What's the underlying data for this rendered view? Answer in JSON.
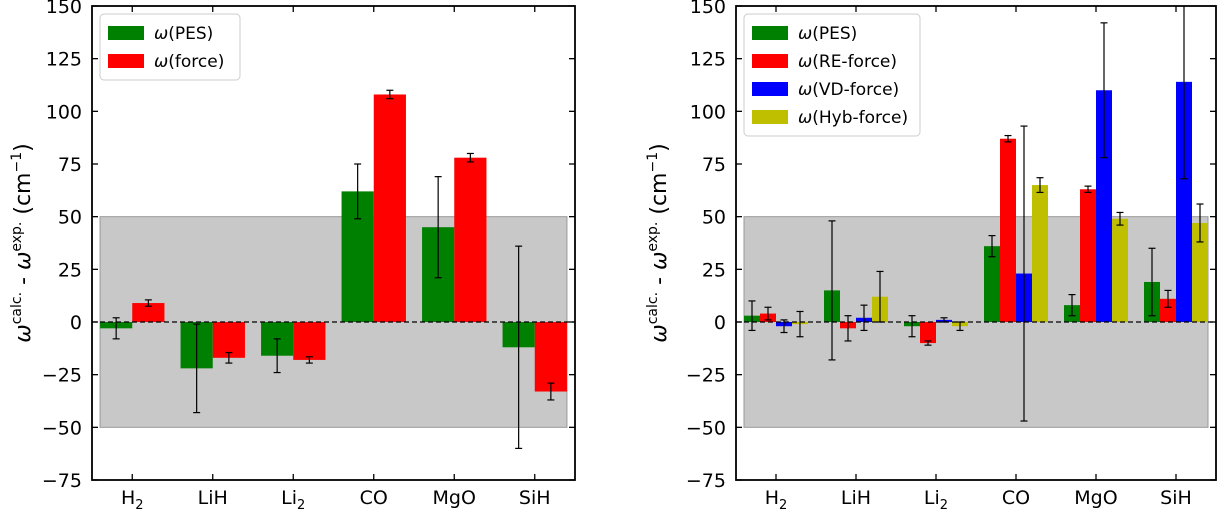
{
  "chart_data": [
    {
      "type": "bar",
      "categories": [
        [
          "H",
          "2"
        ],
        [
          "LiH",
          ""
        ],
        [
          "Li",
          "2"
        ],
        [
          "CO",
          ""
        ],
        [
          "MgO",
          ""
        ],
        [
          "SiH",
          ""
        ]
      ],
      "ylabel": {
        "main": "ω",
        "sup1": "calc.",
        "mid": " - ω",
        "sup2": "exp.",
        "unit_open": " (cm",
        "unit_sup": "−1",
        "unit_close": ")"
      },
      "ylim": [
        -75,
        150
      ],
      "yticks": [
        -75,
        -50,
        -25,
        0,
        25,
        50,
        75,
        100,
        125,
        150
      ],
      "shaded_band": [
        -50,
        50
      ],
      "zero_line": "dashed",
      "legend_position": "top-left",
      "series": [
        {
          "name": "ω(PES)",
          "color": "#008000",
          "values": [
            -3,
            -22,
            -16,
            62,
            45,
            -12
          ],
          "errors": [
            5,
            21,
            8,
            13,
            24,
            48
          ]
        },
        {
          "name": "ω(force)",
          "color": "#ff0000",
          "values": [
            9,
            -17,
            -18,
            108,
            78,
            -33
          ],
          "errors": [
            1.5,
            2.5,
            1.5,
            2,
            2,
            4
          ]
        }
      ]
    },
    {
      "type": "bar",
      "categories": [
        [
          "H",
          "2"
        ],
        [
          "LiH",
          ""
        ],
        [
          "Li",
          "2"
        ],
        [
          "CO",
          ""
        ],
        [
          "MgO",
          ""
        ],
        [
          "SiH",
          ""
        ]
      ],
      "ylabel": {
        "main": "ω",
        "sup1": "calc.",
        "mid": " - ω",
        "sup2": "exp.",
        "unit_open": " (cm",
        "unit_sup": "−1",
        "unit_close": ")"
      },
      "ylim": [
        -75,
        150
      ],
      "yticks": [
        -75,
        -50,
        -25,
        0,
        25,
        50,
        75,
        100,
        125,
        150
      ],
      "shaded_band": [
        -50,
        50
      ],
      "zero_line": "dashed",
      "legend_position": "top-left",
      "series": [
        {
          "name": "ω(PES)",
          "color": "#008000",
          "values": [
            3,
            15,
            -2,
            36,
            8,
            19
          ],
          "errors": [
            7,
            33,
            5,
            5,
            5,
            16
          ]
        },
        {
          "name": "ω(RE-force)",
          "color": "#ff0000",
          "values": [
            4,
            -3,
            -10,
            87,
            63,
            11
          ],
          "errors": [
            3,
            6,
            1,
            1.5,
            1.5,
            4
          ]
        },
        {
          "name": "ω(VD-force)",
          "color": "#0000ff",
          "values": [
            -2,
            2,
            1,
            23,
            110,
            114
          ],
          "errors": [
            3,
            6,
            1,
            70,
            32,
            46
          ]
        },
        {
          "name": "ω(Hyb-force)",
          "color": "#bfbf00",
          "values": [
            -1,
            12,
            -2,
            65,
            49,
            47
          ],
          "errors": [
            6,
            12,
            2,
            3.5,
            3,
            9
          ]
        }
      ]
    }
  ]
}
